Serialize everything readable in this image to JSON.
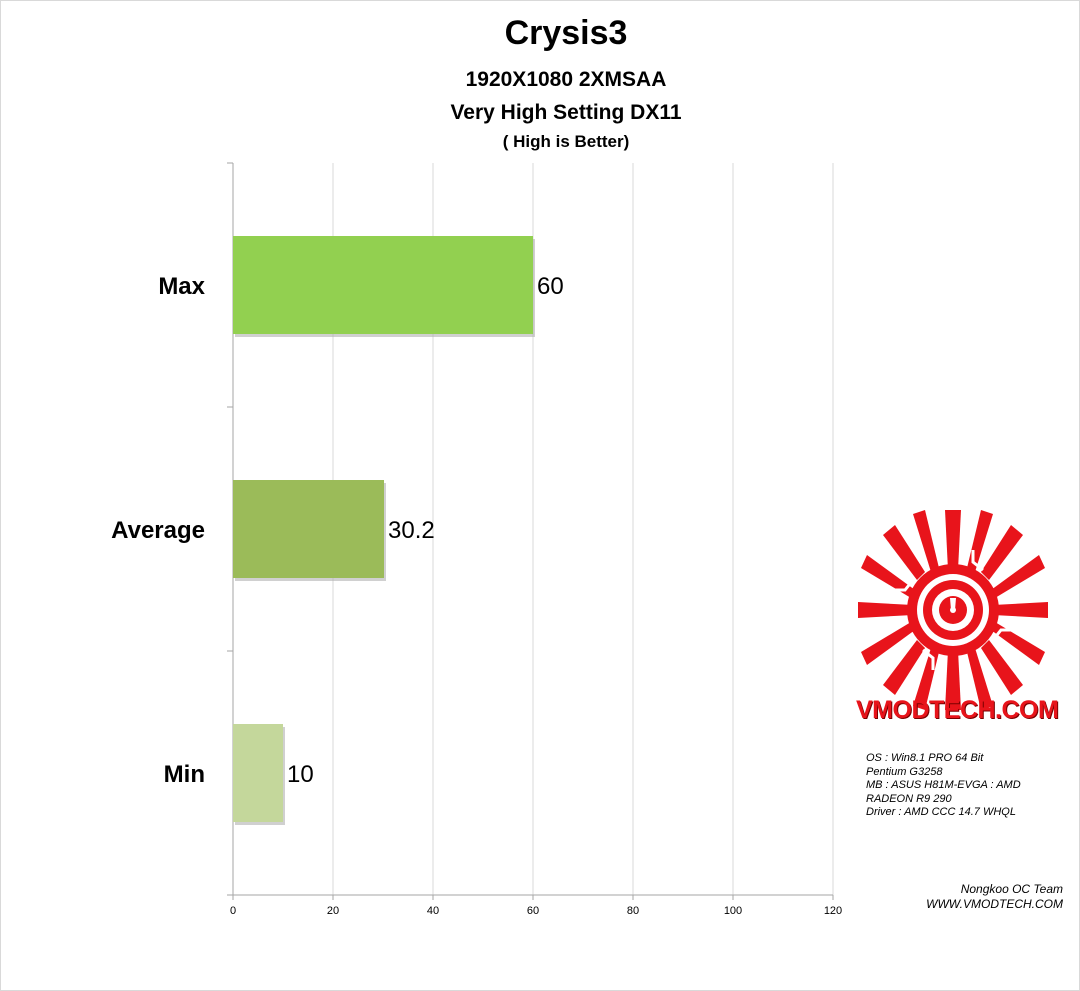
{
  "chart_data": {
    "type": "bar",
    "orientation": "horizontal",
    "title": "Crysis3",
    "subtitle_lines": [
      "1920X1080 2XMSAA",
      "Very High Setting DX11",
      "( High is Better)"
    ],
    "categories": [
      "Max",
      "Average",
      "Min"
    ],
    "values": [
      60,
      30.2,
      10
    ],
    "value_labels": [
      "60",
      "30.2",
      "10"
    ],
    "bar_colors": [
      "#92d050",
      "#9bbb59",
      "#c4d79b"
    ],
    "xlim": [
      0,
      120
    ],
    "x_ticks": [
      0,
      20,
      40,
      60,
      80,
      100,
      120
    ],
    "grid": true,
    "gridline_color": "#d9d9d9"
  },
  "logo": {
    "text": "VMODTECH.COM",
    "color": "#e8141b"
  },
  "specs": [
    " OS : Win8.1 PRO 64 Bit",
    "Pentium G3258",
    "MB : ASUS H81M-EVGA : AMD",
    "RADEON R9 290",
    "Driver : AMD CCC 14.7 WHQL"
  ],
  "credits": {
    "team": "Nongkoo OC Team",
    "site": "WWW.VMODTECH.COM"
  }
}
